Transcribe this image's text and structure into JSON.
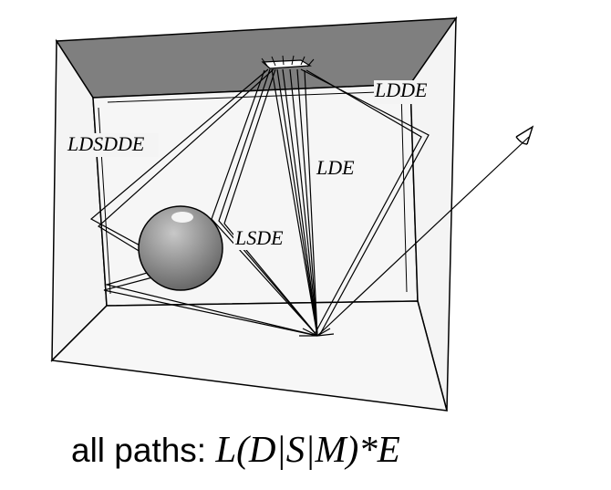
{
  "labels": {
    "lddE": "LDDE",
    "ldsddE": "LDSDDE",
    "ldE": "LDE",
    "lsdE": "LSDE"
  },
  "caption": {
    "prefix": "all paths: ",
    "formula": "L(D|S|M)*E"
  },
  "colors": {
    "ceiling": "#7f7f7f",
    "walls": "#f4f4f4",
    "sphere": "#8a8a8a",
    "lines": "#000000"
  }
}
